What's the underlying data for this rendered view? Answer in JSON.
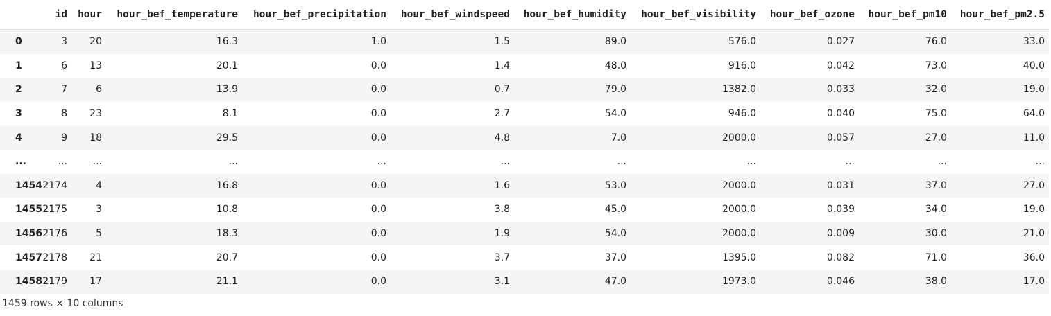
{
  "table": {
    "header": [
      "id",
      "hour",
      "hour_bef_temperature",
      "hour_bef_precipitation",
      "hour_bef_windspeed",
      "hour_bef_humidity",
      "hour_bef_visibility",
      "hour_bef_ozone",
      "hour_bef_pm10",
      "hour_bef_pm2.5"
    ],
    "rows": [
      [
        "0",
        "3",
        "20",
        "16.3",
        "1.0",
        "1.5",
        "89.0",
        "576.0",
        "0.027",
        "76.0",
        "33.0"
      ],
      [
        "1",
        "6",
        "13",
        "20.1",
        "0.0",
        "1.4",
        "48.0",
        "916.0",
        "0.042",
        "73.0",
        "40.0"
      ],
      [
        "2",
        "7",
        "6",
        "13.9",
        "0.0",
        "0.7",
        "79.0",
        "1382.0",
        "0.033",
        "32.0",
        "19.0"
      ],
      [
        "3",
        "8",
        "23",
        "8.1",
        "0.0",
        "2.7",
        "54.0",
        "946.0",
        "0.040",
        "75.0",
        "64.0"
      ],
      [
        "4",
        "9",
        "18",
        "29.5",
        "0.0",
        "4.8",
        "7.0",
        "2000.0",
        "0.057",
        "27.0",
        "11.0"
      ],
      [
        "...",
        "...",
        "...",
        "...",
        "...",
        "...",
        "...",
        "...",
        "...",
        "...",
        "..."
      ],
      [
        "1454",
        "2174",
        "4",
        "16.8",
        "0.0",
        "1.6",
        "53.0",
        "2000.0",
        "0.031",
        "37.0",
        "27.0"
      ],
      [
        "1455",
        "2175",
        "3",
        "10.8",
        "0.0",
        "3.8",
        "45.0",
        "2000.0",
        "0.039",
        "34.0",
        "19.0"
      ],
      [
        "1456",
        "2176",
        "5",
        "18.3",
        "0.0",
        "1.9",
        "54.0",
        "2000.0",
        "0.009",
        "30.0",
        "21.0"
      ],
      [
        "1457",
        "2178",
        "21",
        "20.7",
        "0.0",
        "3.7",
        "37.0",
        "1395.0",
        "0.082",
        "71.0",
        "36.0"
      ],
      [
        "1458",
        "2179",
        "17",
        "21.1",
        "0.0",
        "3.1",
        "47.0",
        "1973.0",
        "0.046",
        "38.0",
        "17.0"
      ]
    ]
  },
  "footer": "1459 rows × 10 columns"
}
